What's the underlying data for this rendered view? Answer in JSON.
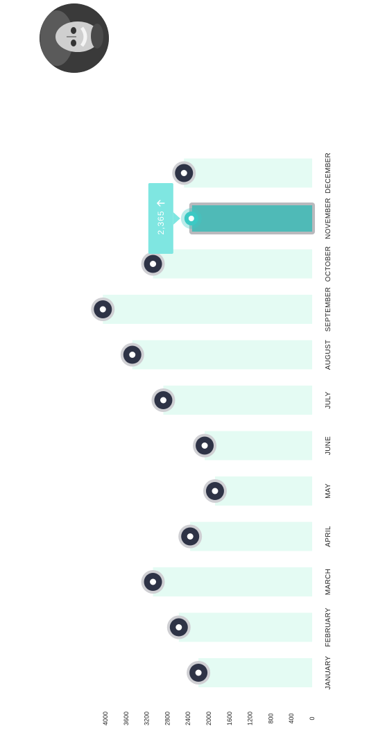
{
  "profile": {
    "avatar_icon": "user-avatar-photo"
  },
  "chart_data": {
    "type": "bar",
    "orientation": "horizontal",
    "categories": [
      "JANUARY",
      "FEBRUARY",
      "MARCH",
      "APRIL",
      "MAY",
      "JUNE",
      "JULY",
      "AUGUST",
      "SEPTEMBER",
      "OCTOBER",
      "NOVEMBER",
      "DECEMBER"
    ],
    "values": [
      2200,
      2580,
      3080,
      2360,
      1880,
      2080,
      2880,
      3480,
      4050,
      3080,
      2365,
      2480
    ],
    "highlighted_index": 10,
    "tooltip": {
      "value_label": "2,365",
      "trend_icon": "arrow-up-icon"
    },
    "axis_ticks": [
      "4000",
      "3600",
      "3200",
      "2800",
      "2400",
      "2000",
      "1600",
      "1200",
      "800",
      "400",
      "0"
    ],
    "axis_range": [
      0,
      4000
    ],
    "grid": false,
    "legend": "none",
    "colors": {
      "bar": "#e4fbf3",
      "bar_highlight": "#4fbab7",
      "bar_highlight_border": "#b9b9bd",
      "marker": "#2e3346",
      "marker_halo": "#cfcfd3",
      "marker_dot": "#ffffff",
      "marker_highlight": "#3cc9c4",
      "tooltip_bg": "#7fe6e1",
      "tooltip_text": "#ffffff",
      "label": "#222222"
    }
  }
}
